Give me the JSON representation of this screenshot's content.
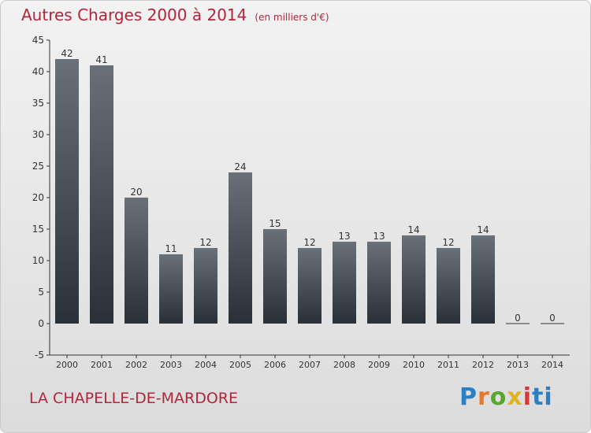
{
  "header": {
    "title": "Autres Charges 2000 à 2014",
    "subtitle": "(en milliers d'€)"
  },
  "footer": {
    "place": "LA CHAPELLE-DE-MARDORE",
    "brand": "Proxiti"
  },
  "colors": {
    "title": "#b0263c",
    "bar_top": "#6a7078",
    "bar_bottom": "#2a3038",
    "axis": "#333333"
  },
  "chart_data": {
    "type": "bar",
    "categories": [
      "2000",
      "2001",
      "2002",
      "2003",
      "2004",
      "2005",
      "2006",
      "2007",
      "2008",
      "2009",
      "2010",
      "2011",
      "2012",
      "2013",
      "2014"
    ],
    "values": [
      42,
      41,
      20,
      11,
      12,
      24,
      15,
      12,
      13,
      13,
      14,
      12,
      14,
      0,
      0
    ],
    "data_labels": [
      "42",
      "41",
      "20",
      "11",
      "12",
      "24",
      "15",
      "12",
      "13",
      "13",
      "14",
      "12",
      "14",
      "0",
      "0"
    ],
    "ylim": [
      -5,
      45
    ],
    "yticks": [
      "-5",
      "0",
      "5",
      "10",
      "15",
      "20",
      "25",
      "30",
      "35",
      "40",
      "45"
    ],
    "grid": false,
    "legend": "none"
  }
}
